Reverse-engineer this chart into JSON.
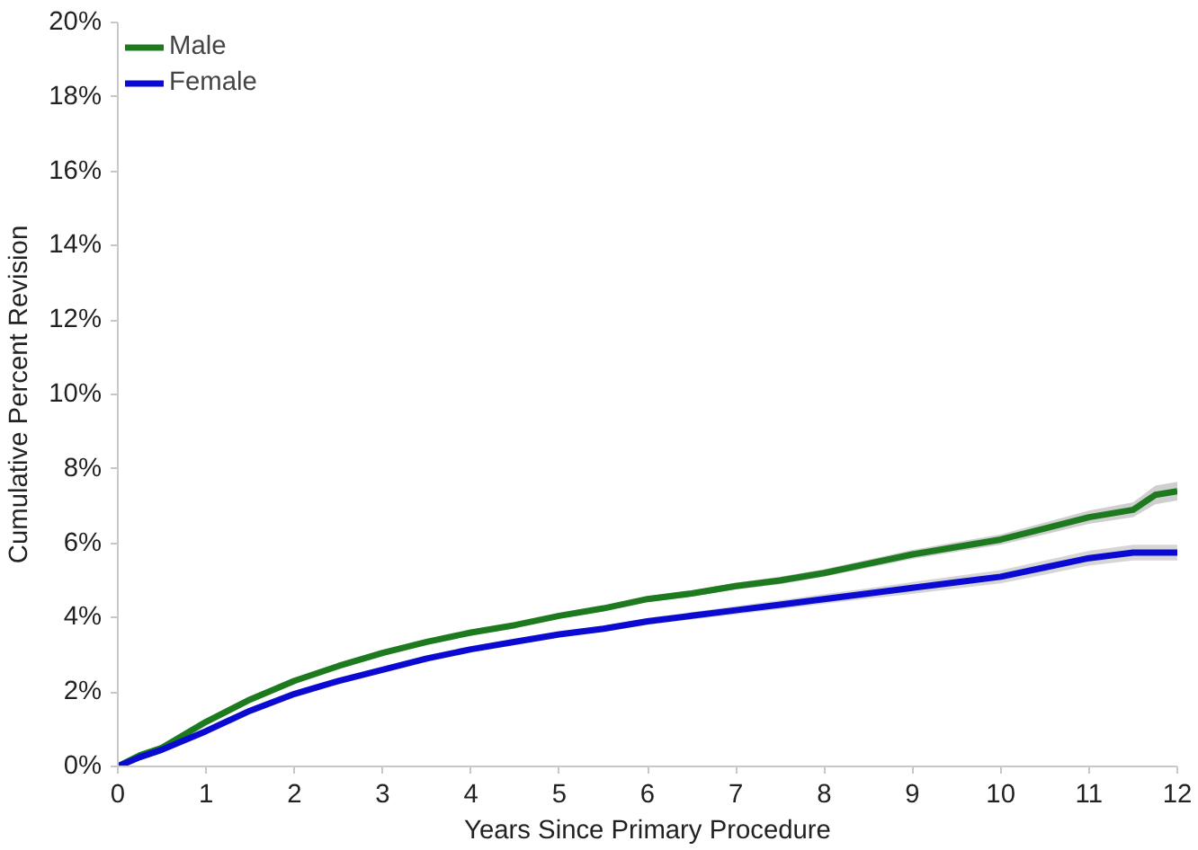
{
  "chart_data": {
    "type": "line",
    "xlabel": "Years Since Primary Procedure",
    "ylabel": "Cumulative Percent Revision",
    "xlim": [
      0,
      12
    ],
    "ylim": [
      0,
      20
    ],
    "xticks": [
      0,
      1,
      2,
      3,
      4,
      5,
      6,
      7,
      8,
      9,
      10,
      11,
      12
    ],
    "yticks": [
      {
        "value": 0,
        "label": "0%"
      },
      {
        "value": 2,
        "label": "2%"
      },
      {
        "value": 4,
        "label": "4%"
      },
      {
        "value": 6,
        "label": "6%"
      },
      {
        "value": 8,
        "label": "8%"
      },
      {
        "value": 10,
        "label": "10%"
      },
      {
        "value": 12,
        "label": "12%"
      },
      {
        "value": 14,
        "label": "14%"
      },
      {
        "value": 16,
        "label": "16%"
      },
      {
        "value": 18,
        "label": "18%"
      },
      {
        "value": 20,
        "label": "20%"
      }
    ],
    "x": [
      0,
      0.25,
      0.5,
      1,
      1.5,
      2,
      2.5,
      3,
      3.5,
      4,
      4.5,
      5,
      5.5,
      6,
      6.5,
      7,
      7.5,
      8,
      8.5,
      9,
      9.5,
      10,
      10.5,
      11,
      11.5,
      11.75,
      12
    ],
    "grid": false,
    "legend": "top left",
    "marker": "none",
    "line_style": "solid",
    "series": [
      {
        "name": "Male",
        "color": "#1e7a1e",
        "values": [
          0,
          0.3,
          0.5,
          1.2,
          1.8,
          2.3,
          2.7,
          3.05,
          3.35,
          3.6,
          3.8,
          4.05,
          4.25,
          4.5,
          4.65,
          4.85,
          5.0,
          5.2,
          5.45,
          5.7,
          5.9,
          6.1,
          6.4,
          6.7,
          6.9,
          7.3,
          7.4
        ],
        "lower": [
          0,
          0.27,
          0.46,
          1.15,
          1.75,
          2.24,
          2.64,
          2.99,
          3.29,
          3.54,
          3.74,
          3.98,
          4.18,
          4.42,
          4.57,
          4.76,
          4.9,
          5.1,
          5.34,
          5.58,
          5.77,
          5.96,
          6.24,
          6.52,
          6.7,
          7.05,
          7.15
        ],
        "upper": [
          0,
          0.33,
          0.54,
          1.25,
          1.85,
          2.36,
          2.76,
          3.11,
          3.41,
          3.66,
          3.86,
          4.12,
          4.32,
          4.58,
          4.73,
          4.94,
          5.1,
          5.3,
          5.56,
          5.82,
          6.03,
          6.24,
          6.56,
          6.88,
          7.1,
          7.55,
          7.65
        ]
      },
      {
        "name": "Female",
        "color": "#0a0ad2",
        "values": [
          0,
          0.25,
          0.45,
          0.95,
          1.5,
          1.95,
          2.3,
          2.6,
          2.9,
          3.15,
          3.35,
          3.55,
          3.7,
          3.9,
          4.05,
          4.2,
          4.35,
          4.5,
          4.65,
          4.8,
          4.95,
          5.1,
          5.35,
          5.6,
          5.75,
          5.75,
          5.75
        ],
        "lower": [
          0,
          0.22,
          0.41,
          0.9,
          1.45,
          1.9,
          2.25,
          2.55,
          2.85,
          3.1,
          3.3,
          3.48,
          3.62,
          3.81,
          3.95,
          4.09,
          4.23,
          4.37,
          4.51,
          4.64,
          4.78,
          4.92,
          5.16,
          5.4,
          5.54,
          5.54,
          5.54
        ],
        "upper": [
          0,
          0.28,
          0.49,
          1.0,
          1.55,
          2.0,
          2.35,
          2.65,
          2.95,
          3.2,
          3.4,
          3.62,
          3.78,
          3.99,
          4.15,
          4.31,
          4.47,
          4.63,
          4.79,
          4.96,
          5.12,
          5.28,
          5.54,
          5.8,
          5.96,
          5.96,
          5.96
        ]
      }
    ]
  }
}
